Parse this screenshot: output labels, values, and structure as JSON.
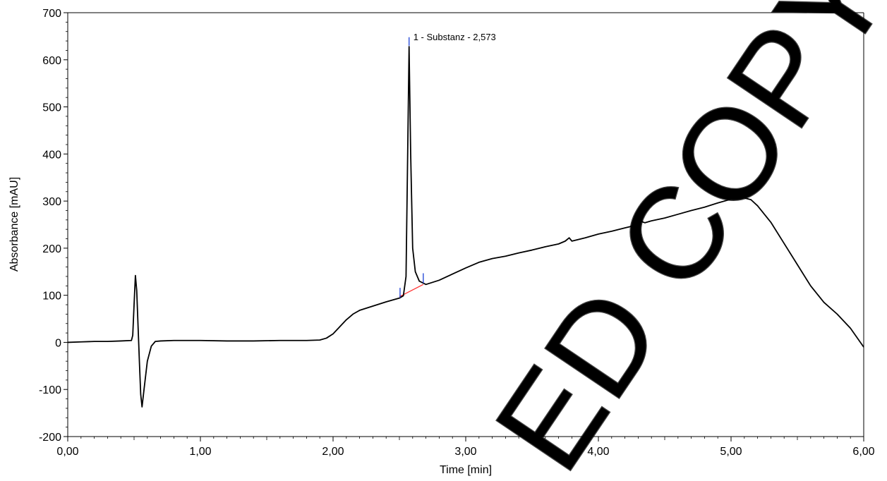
{
  "chart_data": {
    "type": "line",
    "title": "",
    "xlabel": "Time [min]",
    "ylabel": "Absorbance [mAU]",
    "xlim": [
      0,
      6
    ],
    "ylim": [
      -200,
      700
    ],
    "grid": false,
    "x_ticks": [
      0,
      1,
      2,
      3,
      4,
      5,
      6
    ],
    "x_tick_labels": [
      "0,00",
      "1,00",
      "2,00",
      "3,00",
      "4,00",
      "5,00",
      "6,00"
    ],
    "y_ticks": [
      -200,
      -100,
      0,
      100,
      200,
      300,
      400,
      500,
      600,
      700
    ],
    "y_tick_labels": [
      "-200",
      "-100",
      "0",
      "100",
      "200",
      "300",
      "400",
      "500",
      "600",
      "700"
    ],
    "series": [
      {
        "color": "#000000",
        "points": [
          [
            0,
            0
          ],
          [
            0.1,
            1
          ],
          [
            0.2,
            2
          ],
          [
            0.3,
            2
          ],
          [
            0.4,
            3
          ],
          [
            0.48,
            4
          ],
          [
            0.49,
            15
          ],
          [
            0.5,
            80
          ],
          [
            0.51,
            142
          ],
          [
            0.52,
            110
          ],
          [
            0.53,
            35
          ],
          [
            0.54,
            -40
          ],
          [
            0.55,
            -110
          ],
          [
            0.56,
            -137
          ],
          [
            0.575,
            -100
          ],
          [
            0.6,
            -40
          ],
          [
            0.63,
            -8
          ],
          [
            0.66,
            2
          ],
          [
            0.7,
            3
          ],
          [
            0.8,
            4
          ],
          [
            1.0,
            4
          ],
          [
            1.2,
            3
          ],
          [
            1.4,
            3
          ],
          [
            1.6,
            4
          ],
          [
            1.8,
            4
          ],
          [
            1.9,
            5
          ],
          [
            1.95,
            9
          ],
          [
            2.0,
            18
          ],
          [
            2.05,
            33
          ],
          [
            2.1,
            48
          ],
          [
            2.15,
            60
          ],
          [
            2.2,
            68
          ],
          [
            2.3,
            77
          ],
          [
            2.4,
            86
          ],
          [
            2.5,
            94
          ],
          [
            2.53,
            99
          ],
          [
            2.55,
            140
          ],
          [
            2.56,
            350
          ],
          [
            2.573,
            628
          ],
          [
            2.585,
            400
          ],
          [
            2.6,
            200
          ],
          [
            2.62,
            150
          ],
          [
            2.65,
            130
          ],
          [
            2.7,
            123
          ],
          [
            2.8,
            132
          ],
          [
            2.9,
            145
          ],
          [
            3.0,
            158
          ],
          [
            3.1,
            170
          ],
          [
            3.2,
            178
          ],
          [
            3.3,
            183
          ],
          [
            3.4,
            190
          ],
          [
            3.5,
            196
          ],
          [
            3.6,
            203
          ],
          [
            3.7,
            209
          ],
          [
            3.75,
            215
          ],
          [
            3.78,
            222
          ],
          [
            3.8,
            215
          ],
          [
            3.9,
            222
          ],
          [
            4.0,
            230
          ],
          [
            4.1,
            236
          ],
          [
            4.2,
            243
          ],
          [
            4.3,
            250
          ],
          [
            4.31,
            262
          ],
          [
            4.32,
            270
          ],
          [
            4.33,
            256
          ],
          [
            4.35,
            254
          ],
          [
            4.4,
            258
          ],
          [
            4.5,
            264
          ],
          [
            4.6,
            272
          ],
          [
            4.7,
            280
          ],
          [
            4.8,
            287
          ],
          [
            4.9,
            296
          ],
          [
            5.0,
            304
          ],
          [
            5.08,
            308
          ],
          [
            5.15,
            303
          ],
          [
            5.2,
            290
          ],
          [
            5.3,
            255
          ],
          [
            5.4,
            210
          ],
          [
            5.5,
            165
          ],
          [
            5.6,
            120
          ],
          [
            5.7,
            85
          ],
          [
            5.8,
            60
          ],
          [
            5.9,
            30
          ],
          [
            6.0,
            -10
          ]
        ]
      }
    ],
    "baseline": {
      "color": "#ff3333",
      "points": [
        [
          2.5,
          97
        ],
        [
          2.68,
          123
        ]
      ]
    },
    "peak_markers": {
      "color": "#1a3fd6",
      "x": [
        2.505,
        2.573,
        2.68
      ]
    },
    "annotations": [
      {
        "text": "1 - Substanz - 2,573",
        "x": 2.573,
        "y": 628
      }
    ],
    "watermark": {
      "text": "ED COPY",
      "color": "#444444"
    }
  }
}
